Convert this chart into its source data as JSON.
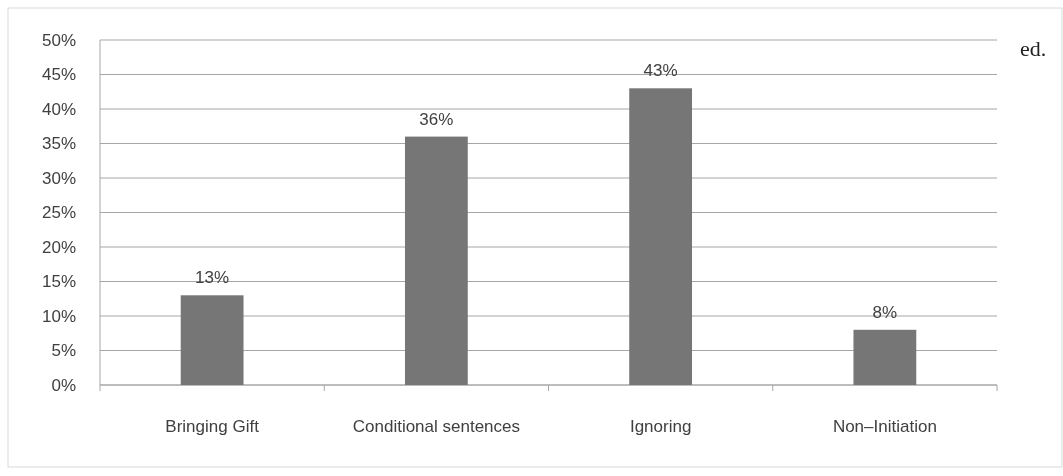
{
  "chart_data": {
    "type": "bar",
    "categories": [
      "Bringing Gift",
      "Conditional sentences",
      "Ignoring",
      "Non–Initiation"
    ],
    "values": [
      13,
      36,
      43,
      8
    ],
    "value_labels": [
      "13%",
      "36%",
      "43%",
      "8%"
    ],
    "color": "#767676",
    "ylim": [
      0,
      50
    ],
    "yticks": [
      {
        "value": 0,
        "label": "0%"
      },
      {
        "value": 5,
        "label": "5%"
      },
      {
        "value": 10,
        "label": "10%"
      },
      {
        "value": 15,
        "label": "15%"
      },
      {
        "value": 20,
        "label": "20%"
      },
      {
        "value": 25,
        "label": "25%"
      },
      {
        "value": 30,
        "label": "30%"
      },
      {
        "value": 35,
        "label": "35%"
      },
      {
        "value": 40,
        "label": "40%"
      },
      {
        "value": 45,
        "label": "45%"
      },
      {
        "value": 50,
        "label": "50%"
      }
    ],
    "grid": "y",
    "annotations": [
      "ed."
    ]
  }
}
